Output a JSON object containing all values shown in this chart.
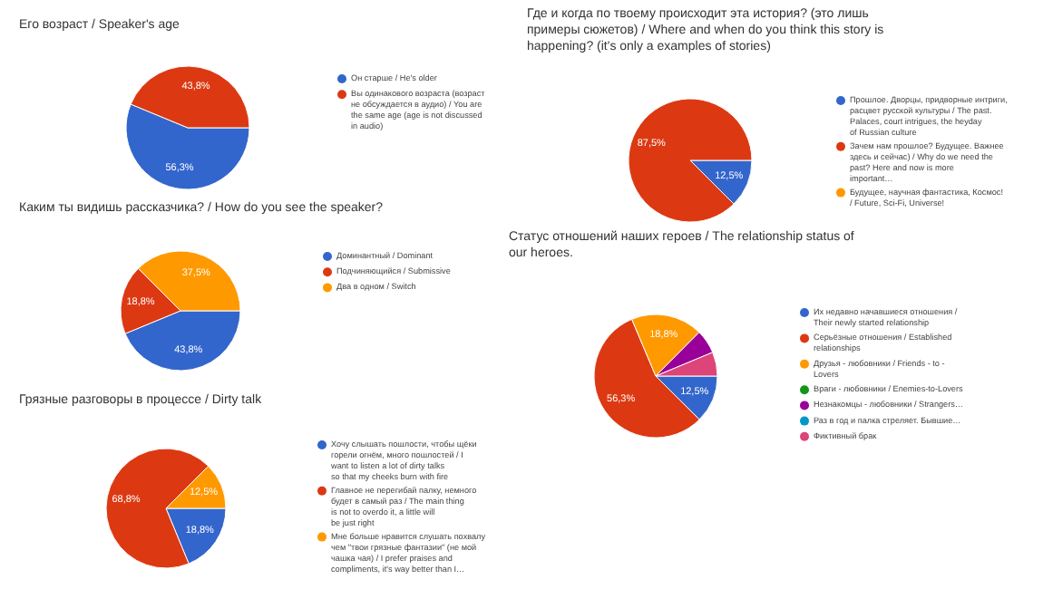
{
  "chart_data": [
    {
      "type": "pie",
      "title": "Его возраст / Speaker's age",
      "categories": [
        "Он старше / He's older",
        "Вы одинакового возраста (возраст не обсуждается в аудио) / You are the same age (age is not discussed in audio)"
      ],
      "values": [
        56.3,
        43.8
      ],
      "colors": [
        "#3366cc",
        "#dc3912"
      ],
      "value_labels": [
        "56,3%",
        "43,8%"
      ],
      "legend": "right"
    },
    {
      "type": "pie",
      "title": "Где и когда по твоему происходит эта история? (это лишь примеры сюжетов) /  Where and when do you think this story is happening? (it's only a examples of stories)",
      "categories": [
        "Прошлое. Дворцы, придворные интриги, расцвет русской культуры / The past. Palaces, court intrigues, the heyday of Russian culture",
        "Зачем нам прошлое? Будущее. Важнее здесь и сейчас) / Why do we need the past? Here and now is more important…",
        "Будущее, научная фантастика, Космос! / Future, Sci-Fi, Universe!"
      ],
      "values": [
        12.5,
        87.5,
        0
      ],
      "colors": [
        "#3366cc",
        "#dc3912",
        "#ff9900"
      ],
      "value_labels": [
        "12,5%",
        "87,5%",
        null
      ],
      "legend": "right"
    },
    {
      "type": "pie",
      "title": "Каким ты видишь рассказчика? /  How do you see the speaker?",
      "categories": [
        "Доминантный / Dominant",
        "Подчиняющийся / Submissive",
        "Два в одном / Switch"
      ],
      "values": [
        43.8,
        18.8,
        37.5
      ],
      "colors": [
        "#3366cc",
        "#dc3912",
        "#ff9900"
      ],
      "value_labels": [
        "43,8%",
        "18,8%",
        "37,5%"
      ],
      "legend": "right"
    },
    {
      "type": "pie",
      "title": "Статус отношений наших героев /  The relationship status of our heroes.",
      "categories": [
        "Их недавно начавшиеся отношения / Their newly started relationship",
        "Серьёзные отношения / Established relationships",
        "Друзья - любовники / Friends - to - Lovers",
        "Враги - любовники / Enemies-to-Lovers",
        "Незнакомцы - любовники / Strangers…",
        "Раз в год и палка стреляет. Бывшие…",
        "Фиктивный брак"
      ],
      "values": [
        12.5,
        56.3,
        18.8,
        0,
        6.3,
        0,
        6.3
      ],
      "colors": [
        "#3366cc",
        "#dc3912",
        "#ff9900",
        "#109618",
        "#990099",
        "#0099c6",
        "#dd4477"
      ],
      "value_labels": [
        "12,5%",
        "56,3%",
        "18,8%",
        null,
        null,
        null,
        null
      ],
      "legend": "right"
    },
    {
      "type": "pie",
      "title": "Грязные разговоры в процессе / Dirty talk",
      "categories": [
        "Хочу слышать пошлости, чтобы щёки горели огнём, много пошлостей / I want to listen a lot of dirty talks so that my cheeks burn with fire",
        "Главное не перегибай палку, немного будет в самый раз / The main thing is not to overdo it, a little will be just right",
        "Мне больше нравится слушать похвалу чем \"твои грязные фантазии\" (не мой чашка чая) / I prefer praises and compliments, it's way better than I…"
      ],
      "values": [
        18.8,
        68.8,
        12.5
      ],
      "colors": [
        "#3366cc",
        "#dc3912",
        "#ff9900"
      ],
      "value_labels": [
        "18,8%",
        "68,8%",
        "12,5%"
      ],
      "legend": "right"
    }
  ]
}
